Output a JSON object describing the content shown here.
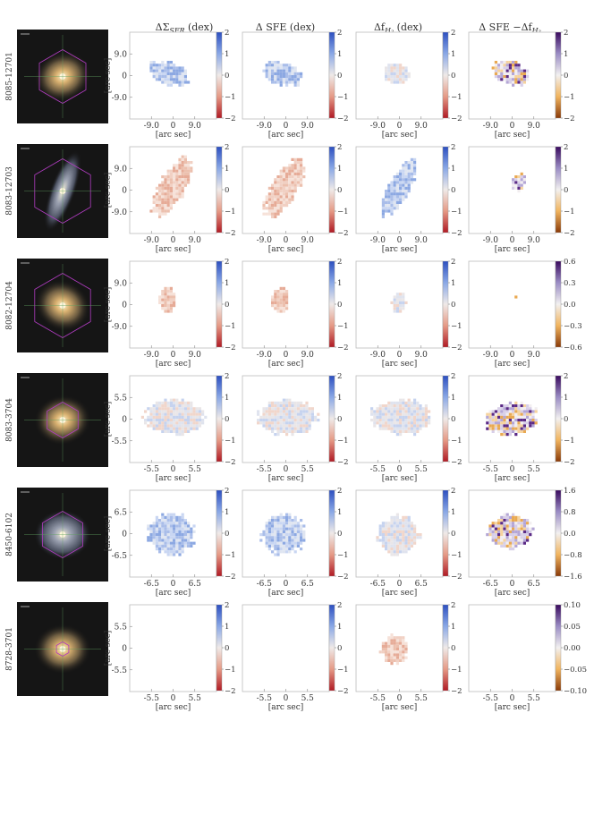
{
  "figure": {
    "column_titles": [
      {
        "main": "ΔΣ",
        "sub": "SFR",
        "suffix": " (dex)"
      },
      {
        "main": "Δ SFE (dex)",
        "sub": "",
        "suffix": ""
      },
      {
        "main": "Δf",
        "sub": "H₂",
        "suffix": " (dex)"
      },
      {
        "main": "Δ SFE −Δf",
        "sub": "H₂",
        "suffix": ""
      }
    ],
    "x_axis_label": "[arc sec]",
    "y_axis_label": "[arc sec]"
  },
  "chart_data": [
    {
      "galaxy": "8085-12701",
      "type": "heatmap",
      "ticks": [
        "-9.0",
        "0",
        "9.0"
      ],
      "extent": 18,
      "colorbars": [
        [
          "2",
          "1",
          "0",
          "−1",
          "−2"
        ],
        [
          "2",
          "1",
          "0",
          "−1",
          "−2"
        ],
        [
          "2",
          "1",
          "0",
          "−1",
          "−2"
        ],
        [
          "2",
          "1",
          "0",
          "−1",
          "−2"
        ]
      ],
      "colorscales": [
        "diverging-red-blue",
        "diverging-red-blue",
        "diverging-red-blue",
        "diverging-orange-purple"
      ]
    },
    {
      "galaxy": "8083-12703",
      "type": "heatmap",
      "ticks": [
        "-9.0",
        "0",
        "9.0"
      ],
      "extent": 18,
      "colorbars": [
        [
          "2",
          "1",
          "0",
          "−1",
          "−2"
        ],
        [
          "2",
          "1",
          "0",
          "−1",
          "−2"
        ],
        [
          "2",
          "1",
          "0",
          "−1",
          "−2"
        ],
        [
          "2",
          "1",
          "0",
          "−1",
          "−2"
        ]
      ],
      "colorscales": [
        "diverging-red-blue",
        "diverging-red-blue",
        "diverging-red-blue",
        "diverging-orange-purple"
      ]
    },
    {
      "galaxy": "8082-12704",
      "type": "heatmap",
      "ticks": [
        "-9.0",
        "0",
        "9.0"
      ],
      "extent": 18,
      "colorbars": [
        [
          "2",
          "1",
          "0",
          "−1",
          "−2"
        ],
        [
          "2",
          "1",
          "0",
          "−1",
          "−2"
        ],
        [
          "2",
          "1",
          "0",
          "−1",
          "−2"
        ],
        [
          "0.6",
          "0.3",
          "0.0",
          "−0.3",
          "−0.6"
        ]
      ],
      "colorscales": [
        "diverging-red-blue",
        "diverging-red-blue",
        "diverging-red-blue",
        "diverging-orange-purple"
      ]
    },
    {
      "galaxy": "8083-3704",
      "type": "heatmap",
      "ticks": [
        "-5.5",
        "0",
        "5.5"
      ],
      "extent": 11,
      "colorbars": [
        [
          "2",
          "1",
          "0",
          "−1",
          "−2"
        ],
        [
          "2",
          "1",
          "0",
          "−1",
          "−2"
        ],
        [
          "2",
          "1",
          "0",
          "−1",
          "−2"
        ],
        [
          "2",
          "1",
          "0",
          "−1",
          "−2"
        ]
      ],
      "colorscales": [
        "diverging-red-blue",
        "diverging-red-blue",
        "diverging-red-blue",
        "diverging-orange-purple"
      ]
    },
    {
      "galaxy": "8450-6102",
      "type": "heatmap",
      "ticks": [
        "-6.5",
        "0",
        "6.5"
      ],
      "extent": 13,
      "colorbars": [
        [
          "2",
          "1",
          "0",
          "−1",
          "−2"
        ],
        [
          "2",
          "1",
          "0",
          "−1",
          "−2"
        ],
        [
          "2",
          "1",
          "0",
          "−1",
          "−2"
        ],
        [
          "1.6",
          "0.8",
          "0.0",
          "−0.8",
          "−1.6"
        ]
      ],
      "colorscales": [
        "diverging-red-blue",
        "diverging-red-blue",
        "diverging-red-blue",
        "diverging-orange-purple"
      ]
    },
    {
      "galaxy": "8728-3701",
      "type": "heatmap",
      "ticks": [
        "-5.5",
        "0",
        "5.5"
      ],
      "extent": 11,
      "colorbars": [
        [
          "2",
          "1",
          "0",
          "−1",
          "−2"
        ],
        [
          "2",
          "1",
          "0",
          "−1",
          "−2"
        ],
        [
          "2",
          "1",
          "0",
          "−1",
          "−2"
        ],
        [
          "0.10",
          "0.05",
          "0.00",
          "−0.05",
          "−0.10"
        ]
      ],
      "colorscales": [
        "diverging-red-blue",
        "diverging-red-blue",
        "diverging-red-blue",
        "diverging-orange-purple"
      ]
    }
  ]
}
